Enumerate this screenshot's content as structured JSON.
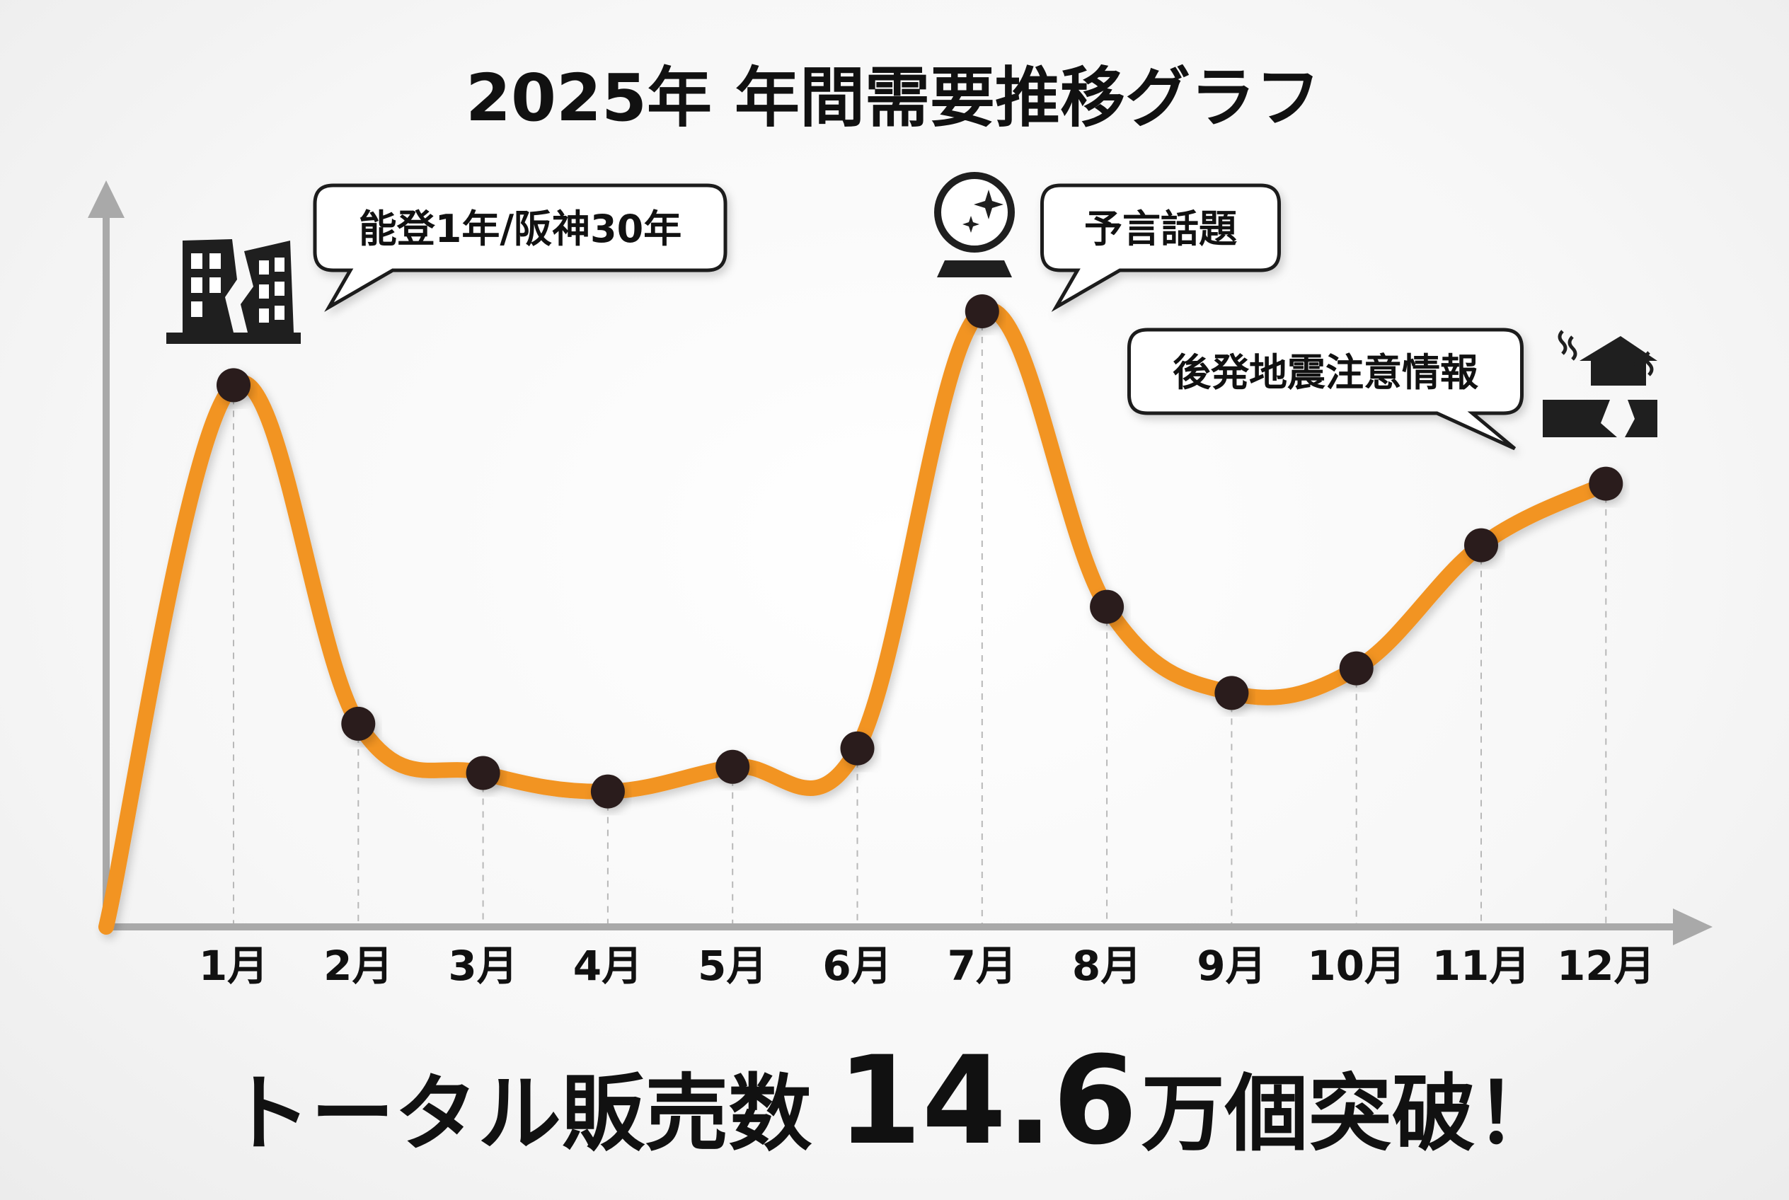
{
  "chart_data": {
    "type": "line",
    "title": "2025年 年間需要推移グラフ",
    "categories": [
      "1月",
      "2月",
      "3月",
      "4月",
      "5月",
      "6月",
      "7月",
      "8月",
      "9月",
      "10月",
      "11月",
      "12月"
    ],
    "values": [
      88,
      33,
      25,
      22,
      26,
      29,
      100,
      52,
      38,
      42,
      62,
      72
    ],
    "start_value": 0,
    "ylim": [
      0,
      105
    ],
    "grid": false,
    "line_color": "#f29422",
    "point_color": "#2a1f1c",
    "annotations": [
      {
        "text": "能登1年/阪神30年",
        "category": "1月",
        "icon": "collapsed-building-icon"
      },
      {
        "text": "予言話題",
        "category": "7月",
        "icon": "crystal-ball-icon"
      },
      {
        "text": "後発地震注意情報",
        "category": "12月",
        "icon": "earthquake-house-icon"
      }
    ],
    "footer": {
      "prefix": "トータル販売数",
      "number": "14.6",
      "suffix": "万個突破！"
    }
  }
}
